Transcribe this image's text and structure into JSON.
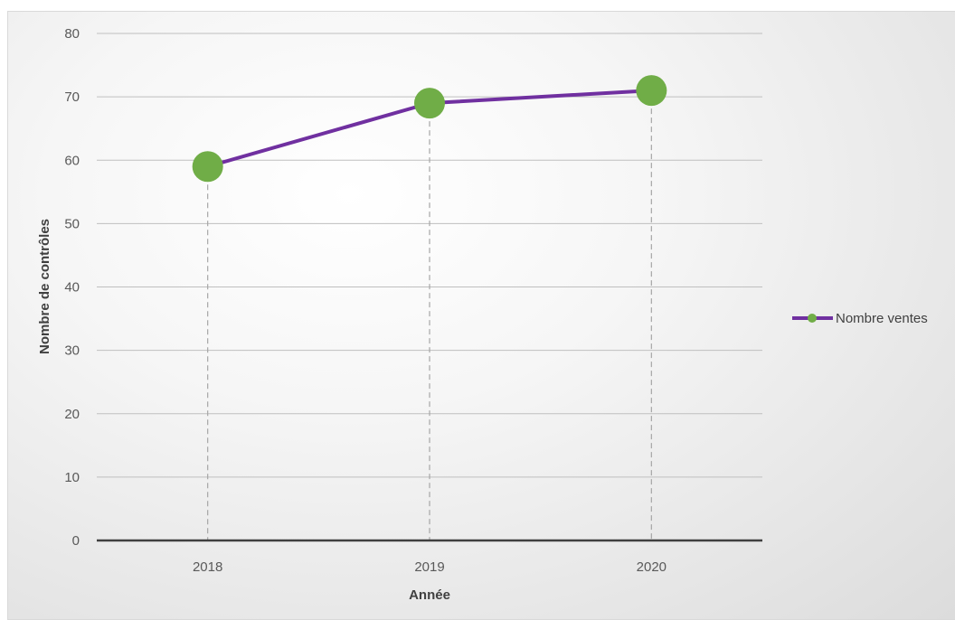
{
  "chart_data": {
    "type": "line",
    "title": "",
    "xlabel": "Année",
    "ylabel": "Nombre de contrôles",
    "categories": [
      "2018",
      "2019",
      "2020"
    ],
    "series": [
      {
        "name": "Nombre ventes",
        "values": [
          59,
          69,
          71
        ],
        "color": "#7030a0",
        "marker_color": "#70ad47"
      }
    ],
    "ylim": [
      0,
      80
    ],
    "yticks": [
      0,
      10,
      20,
      30,
      40,
      50,
      60,
      70,
      80
    ],
    "grid": true,
    "drop_lines": true,
    "legend_position": "right"
  }
}
